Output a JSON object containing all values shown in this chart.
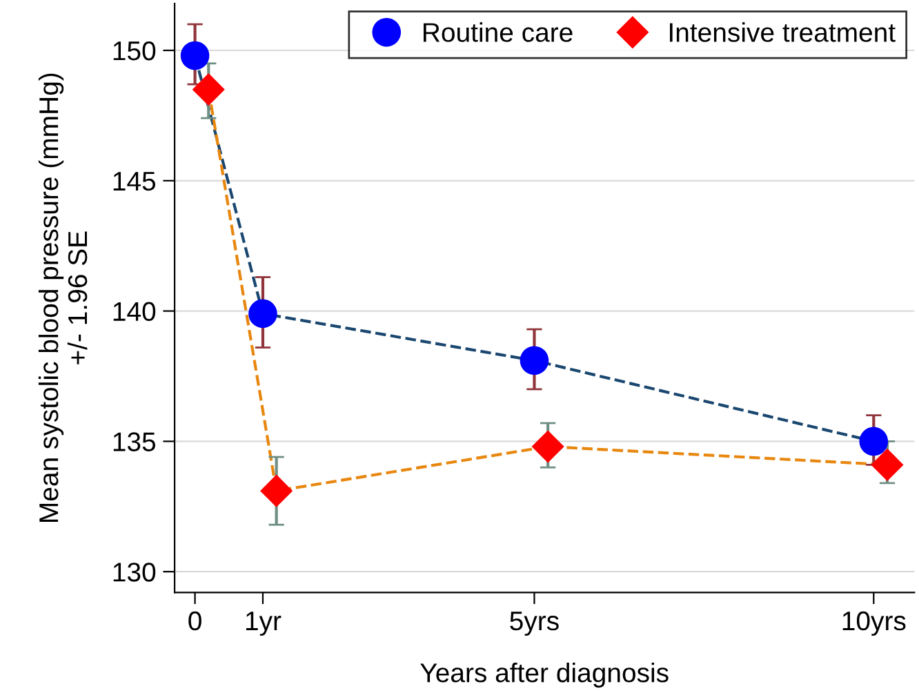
{
  "chart_data": {
    "type": "line",
    "xlabel": "Years after diagnosis",
    "ylabel": "Mean systolic blood pressure (mmHg)\n+/- 1.96 SE",
    "xlim": [
      -0.3,
      10.6
    ],
    "xticks": [
      {
        "value": 0,
        "label": "0"
      },
      {
        "value": 1,
        "label": "1yr"
      },
      {
        "value": 5,
        "label": "5yrs"
      },
      {
        "value": 10,
        "label": "10yrs"
      }
    ],
    "ylim": [
      129.2,
      151.8
    ],
    "yticks": [
      130,
      135,
      140,
      145,
      150
    ],
    "grid": "y",
    "legend": "top right",
    "line_style": "dashed",
    "series": [
      {
        "name": "Routine care",
        "color": "#0000ff",
        "marker": "circle",
        "x": [
          0,
          1,
          5,
          10
        ],
        "values": [
          149.8,
          139.9,
          138.1,
          135.0
        ],
        "errors": [
          [
            148.7,
            151.0
          ],
          [
            138.6,
            141.3
          ],
          [
            137.0,
            139.3
          ],
          [
            134.1,
            136.0
          ]
        ]
      },
      {
        "name": "Intensive treatment",
        "color": "#ff0000",
        "marker": "diamond",
        "x": [
          0.2,
          1.2,
          5.2,
          10.2
        ],
        "values": [
          148.5,
          133.1,
          134.8,
          134.1
        ],
        "errors": [
          [
            147.4,
            149.5
          ],
          [
            131.8,
            134.4
          ],
          [
            134.0,
            135.7
          ],
          [
            133.4,
            135.0
          ]
        ]
      }
    ]
  }
}
